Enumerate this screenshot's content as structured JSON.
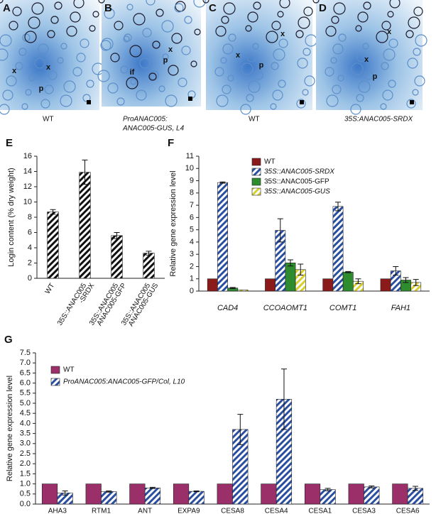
{
  "micrographs": [
    {
      "label": "A",
      "caption": [
        "WT"
      ],
      "marks": [
        "x",
        "x",
        "p"
      ]
    },
    {
      "label": "B",
      "caption": [
        "ProANAC005:",
        "ANAC005-GUS, L4"
      ],
      "marks": [
        "x",
        "p",
        "if"
      ]
    },
    {
      "label": "C",
      "caption": [
        "WT"
      ],
      "marks": [
        "x",
        "x",
        "p"
      ]
    },
    {
      "label": "D",
      "caption": [
        "35S:ANAC005-SRDX"
      ],
      "marks": [
        "x",
        "x",
        "p"
      ]
    }
  ],
  "chart_data": [
    {
      "type": "bar",
      "label": "E",
      "ylabel": "Login content (% dry weight)",
      "categories": [
        "WT",
        [
          "35S::ANAC005",
          "-SRDX"
        ],
        [
          "35S::ANAC005",
          "ANAC005-GFP"
        ],
        [
          "35S::ANAC005",
          "ANAC005-GUS"
        ]
      ],
      "values": [
        8.7,
        13.9,
        5.6,
        3.3
      ],
      "errors": [
        0.3,
        1.6,
        0.4,
        0.25
      ],
      "color": "#111111",
      "hatch": true,
      "ylim": [
        0,
        16
      ],
      "yticks": [
        0,
        2,
        4,
        6,
        8,
        10,
        12,
        14,
        16
      ]
    },
    {
      "type": "bar",
      "label": "F",
      "ylabel": "Relative gene expression level",
      "categories": [
        "CAD4",
        "CCOAOMT1",
        "COMT1",
        "FAH1"
      ],
      "series": [
        {
          "name": "WT",
          "color": "#8b1a1a",
          "hatch": false,
          "values": [
            1,
            1,
            1,
            1
          ],
          "errors": [
            0,
            0,
            0,
            0
          ]
        },
        {
          "name": "35S::ANAC005-SRDX",
          "color": "#2a4fa0",
          "hatch": true,
          "values": [
            8.85,
            4.95,
            6.9,
            1.65
          ],
          "errors": [
            0.05,
            0.95,
            0.35,
            0.35
          ]
        },
        {
          "name": "35S::ANAC005-GFP",
          "color": "#2e8b2e",
          "hatch": false,
          "values": [
            0.25,
            2.3,
            1.55,
            0.9
          ],
          "errors": [
            0.05,
            0.25,
            0.05,
            0.2
          ]
        },
        {
          "name": "35S::ANAC005-GUS",
          "color": "#d8d030",
          "hatch": true,
          "values": [
            0.1,
            1.75,
            0.8,
            0.7
          ],
          "errors": [
            0,
            0.45,
            0.2,
            0.25
          ]
        }
      ],
      "ylim": [
        0,
        11
      ],
      "yticks": [
        0,
        1,
        2,
        3,
        4,
        5,
        6,
        7,
        8,
        9,
        10,
        11
      ]
    },
    {
      "type": "bar",
      "label": "G",
      "ylabel": "Relative gene expression level",
      "categories": [
        "AHA3",
        "RTM1",
        "ANT",
        "EXPA9",
        "CESA8",
        "CESA4",
        "CESA1",
        "CESA3",
        "CESA6"
      ],
      "series": [
        {
          "name": "WT",
          "color": "#9b2f6a",
          "hatch": false,
          "values": [
            1,
            1,
            1,
            1,
            1,
            1,
            1,
            1,
            1
          ],
          "errors": [
            0,
            0,
            0,
            0,
            0,
            0,
            0,
            0,
            0
          ]
        },
        {
          "name": "ProANAC005:ANAC005-GFP/Col, L10",
          "color": "#2a4fa0",
          "hatch": true,
          "values": [
            0.55,
            0.62,
            0.8,
            0.63,
            3.7,
            5.2,
            0.72,
            0.85,
            0.78
          ],
          "errors": [
            0.1,
            0.03,
            0.03,
            0.02,
            0.75,
            1.5,
            0.06,
            0.05,
            0.1
          ]
        }
      ],
      "ylim": [
        0,
        7.5
      ],
      "yticks": [
        {
          "value": 0,
          "label": "0.0"
        },
        0.5,
        {
          "value": 1,
          "label": "1.0"
        },
        1.5,
        {
          "value": 2,
          "label": "2.0"
        },
        2.5,
        {
          "value": 3,
          "label": "3.0"
        },
        3.5,
        {
          "value": 4,
          "label": "4.0"
        },
        4.5,
        {
          "value": 5,
          "label": "5.0"
        },
        5.5,
        {
          "value": 6,
          "label": "6.0"
        },
        6.5,
        {
          "value": 7,
          "label": "7.0"
        },
        7.5
      ]
    }
  ]
}
